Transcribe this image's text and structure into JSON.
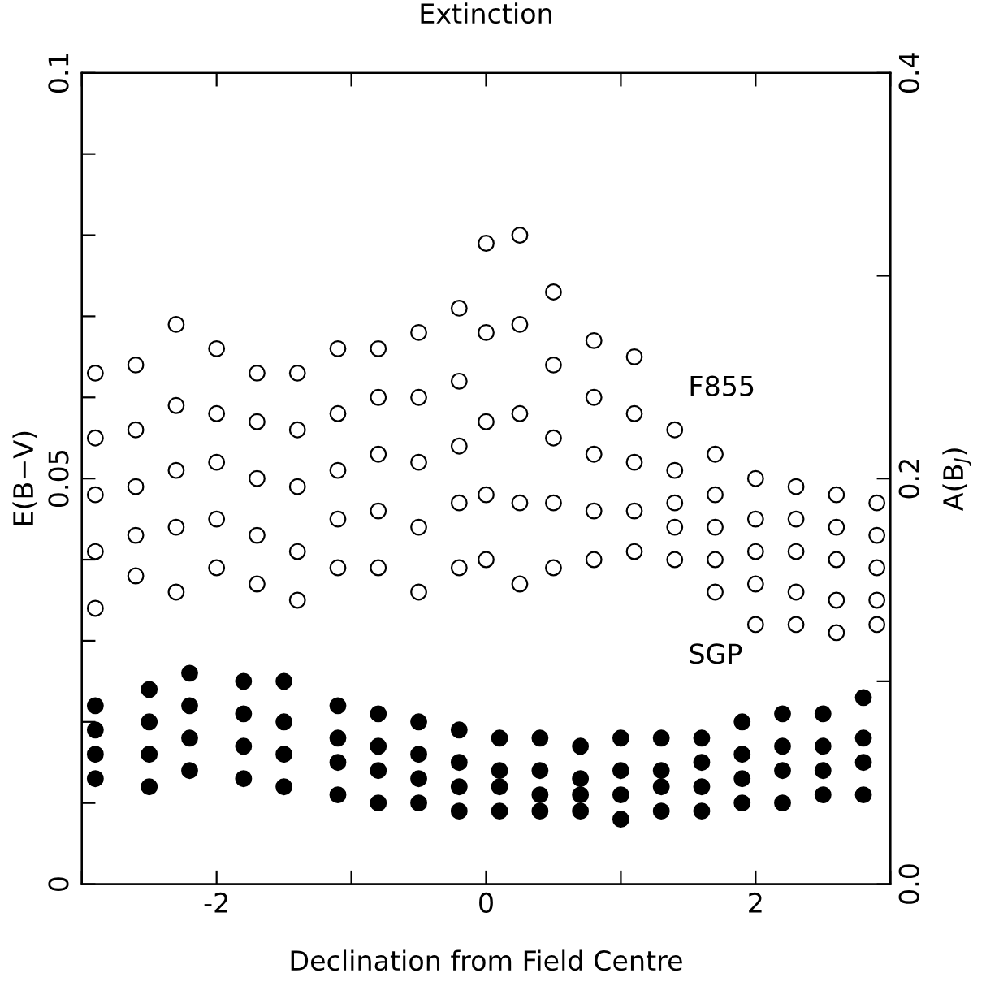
{
  "chart_data": {
    "type": "scatter",
    "title": "Extinction",
    "xlabel": "Declination from Field Centre",
    "ylabel": "E(B−V)",
    "y2label": "A(B$_{J}$)",
    "xlim": [
      -3,
      3
    ],
    "ylim": [
      0,
      0.1
    ],
    "y2lim": [
      0,
      0.4
    ],
    "xticks": [
      {
        "value": -3,
        "label": null
      },
      -2,
      {
        "value": -1,
        "label": null
      },
      0,
      {
        "value": 1,
        "label": null
      },
      2,
      {
        "value": 3,
        "label": null
      }
    ],
    "yticks": [
      0,
      {
        "value": 0.01,
        "label": null
      },
      {
        "value": 0.02,
        "label": null
      },
      {
        "value": 0.03,
        "label": null
      },
      {
        "value": 0.04,
        "label": null
      },
      0.05,
      {
        "value": 0.06,
        "label": null
      },
      {
        "value": 0.07,
        "label": null
      },
      {
        "value": 0.08,
        "label": null
      },
      {
        "value": 0.09,
        "label": null
      },
      0.1
    ],
    "y2ticks": [
      {
        "value": 0,
        "label": "0.0"
      },
      {
        "value": 0.1,
        "label": null
      },
      {
        "value": 0.2,
        "label": "0.2"
      },
      {
        "value": 0.3,
        "label": null
      },
      {
        "value": 0.4,
        "label": "0.4"
      }
    ],
    "grid": false,
    "legend": false,
    "series": [
      {
        "name": "F855",
        "marker": "circle",
        "color": "#000000",
        "x": [
          -2.9,
          -2.9,
          -2.9,
          -2.9,
          -2.9,
          -2.6,
          -2.6,
          -2.6,
          -2.6,
          -2.6,
          -2.3,
          -2.3,
          -2.3,
          -2.3,
          -2.3,
          -2.0,
          -2.0,
          -2.0,
          -2.0,
          -2.0,
          -1.7,
          -1.7,
          -1.7,
          -1.7,
          -1.7,
          -1.4,
          -1.4,
          -1.4,
          -1.4,
          -1.4,
          -1.1,
          -1.1,
          -1.1,
          -1.1,
          -1.1,
          -0.8,
          -0.8,
          -0.8,
          -0.8,
          -0.8,
          -0.5,
          -0.5,
          -0.5,
          -0.5,
          -0.5,
          -0.2,
          -0.2,
          -0.2,
          -0.2,
          -0.2,
          0.0,
          0.0,
          0.0,
          0.0,
          0.0,
          0.25,
          0.25,
          0.25,
          0.25,
          0.25,
          0.5,
          0.5,
          0.5,
          0.5,
          0.5,
          0.8,
          0.8,
          0.8,
          0.8,
          0.8,
          1.1,
          1.1,
          1.1,
          1.1,
          1.1,
          1.4,
          1.4,
          1.4,
          1.4,
          1.4,
          1.7,
          1.7,
          1.7,
          1.7,
          1.7,
          2.0,
          2.0,
          2.0,
          2.0,
          2.0,
          2.3,
          2.3,
          2.3,
          2.3,
          2.3,
          2.6,
          2.6,
          2.6,
          2.6,
          2.6,
          2.9,
          2.9,
          2.9,
          2.9,
          2.9
        ],
        "values": [
          0.063,
          0.055,
          0.048,
          0.041,
          0.034,
          0.064,
          0.056,
          0.049,
          0.043,
          0.038,
          0.069,
          0.059,
          0.051,
          0.044,
          0.036,
          0.066,
          0.058,
          0.052,
          0.045,
          0.039,
          0.063,
          0.057,
          0.05,
          0.043,
          0.037,
          0.063,
          0.056,
          0.049,
          0.041,
          0.035,
          0.066,
          0.058,
          0.051,
          0.045,
          0.039,
          0.066,
          0.06,
          0.053,
          0.046,
          0.039,
          0.068,
          0.06,
          0.052,
          0.044,
          0.036,
          0.071,
          0.062,
          0.054,
          0.047,
          0.039,
          0.079,
          0.068,
          0.057,
          0.048,
          0.04,
          0.08,
          0.069,
          0.058,
          0.047,
          0.037,
          0.073,
          0.064,
          0.055,
          0.047,
          0.039,
          0.067,
          0.06,
          0.053,
          0.046,
          0.04,
          0.065,
          0.058,
          0.052,
          0.046,
          0.041,
          0.056,
          0.051,
          0.047,
          0.044,
          0.04,
          0.053,
          0.048,
          0.044,
          0.04,
          0.036,
          0.05,
          0.045,
          0.041,
          0.037,
          0.032,
          0.049,
          0.045,
          0.041,
          0.036,
          0.032,
          0.048,
          0.044,
          0.04,
          0.035,
          0.031,
          0.047,
          0.043,
          0.039,
          0.035,
          0.032
        ]
      },
      {
        "name": "SGP",
        "marker": "circle_filled",
        "color": "#000000",
        "x": [
          -2.9,
          -2.9,
          -2.9,
          -2.9,
          -2.5,
          -2.5,
          -2.5,
          -2.5,
          -2.2,
          -2.2,
          -2.2,
          -2.2,
          -1.8,
          -1.8,
          -1.8,
          -1.8,
          -1.5,
          -1.5,
          -1.5,
          -1.5,
          -1.1,
          -1.1,
          -1.1,
          -1.1,
          -0.8,
          -0.8,
          -0.8,
          -0.8,
          -0.5,
          -0.5,
          -0.5,
          -0.5,
          -0.2,
          -0.2,
          -0.2,
          -0.2,
          0.1,
          0.1,
          0.1,
          0.1,
          0.4,
          0.4,
          0.4,
          0.4,
          0.7,
          0.7,
          0.7,
          0.7,
          1.0,
          1.0,
          1.0,
          1.0,
          1.3,
          1.3,
          1.3,
          1.3,
          1.6,
          1.6,
          1.6,
          1.6,
          1.9,
          1.9,
          1.9,
          1.9,
          2.2,
          2.2,
          2.2,
          2.2,
          2.5,
          2.5,
          2.5,
          2.5,
          2.8,
          2.8,
          2.8,
          2.8
        ],
        "values": [
          0.022,
          0.019,
          0.016,
          0.013,
          0.024,
          0.02,
          0.016,
          0.012,
          0.026,
          0.022,
          0.018,
          0.014,
          0.025,
          0.021,
          0.017,
          0.013,
          0.025,
          0.02,
          0.016,
          0.012,
          0.022,
          0.018,
          0.015,
          0.011,
          0.021,
          0.017,
          0.014,
          0.01,
          0.02,
          0.016,
          0.013,
          0.01,
          0.019,
          0.015,
          0.012,
          0.009,
          0.018,
          0.014,
          0.012,
          0.009,
          0.018,
          0.014,
          0.011,
          0.009,
          0.017,
          0.013,
          0.011,
          0.009,
          0.018,
          0.014,
          0.011,
          0.008,
          0.018,
          0.014,
          0.012,
          0.009,
          0.018,
          0.015,
          0.012,
          0.009,
          0.02,
          0.016,
          0.013,
          0.01,
          0.021,
          0.017,
          0.014,
          0.01,
          0.021,
          0.017,
          0.014,
          0.011,
          0.023,
          0.018,
          0.015,
          0.011
        ]
      }
    ]
  }
}
